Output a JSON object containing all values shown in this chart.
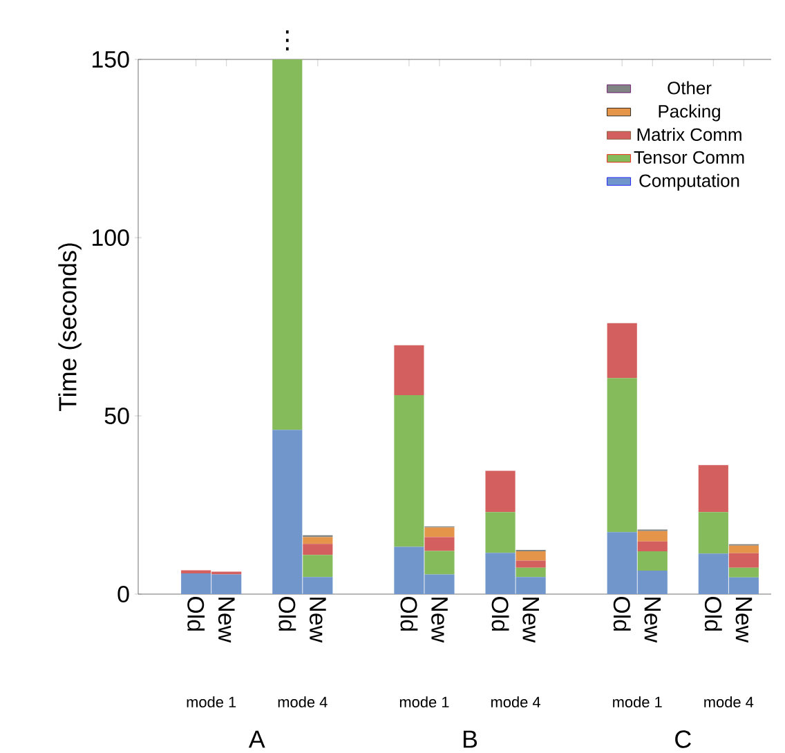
{
  "chart_data": {
    "type": "bar",
    "stacked": true,
    "ylabel": "Time (seconds)",
    "categories": [
      "Old",
      "New",
      null,
      "Old",
      "New",
      null,
      null,
      "Old",
      "New",
      null,
      "Old",
      "New",
      null,
      null,
      "Old",
      "New",
      null,
      "Old",
      "New"
    ],
    "series": [
      {
        "name": "Computation",
        "color": "#7096cc",
        "values": [
          5.8,
          5.5,
          null,
          46.1,
          4.8,
          null,
          null,
          13.3,
          5.5,
          null,
          11.6,
          4.8,
          null,
          null,
          17.4,
          6.6,
          null,
          11.4,
          4.7
        ]
      },
      {
        "name": "Tensor Comm",
        "color": "#86bb5c",
        "values": [
          0,
          0,
          null,
          103.9,
          6.2,
          null,
          null,
          42.5,
          6.6,
          null,
          11.4,
          2.6,
          null,
          null,
          43.2,
          5.4,
          null,
          11.6,
          2.7
        ]
      },
      {
        "name": "Matrix Comm",
        "color": "#d45f5f",
        "values": [
          0.9,
          0.8,
          null,
          0,
          3.1,
          null,
          null,
          14.0,
          3.9,
          null,
          11.6,
          2.0,
          null,
          null,
          15.4,
          2.8,
          null,
          13.2,
          4.1
        ]
      },
      {
        "name": "Packing",
        "color": "#e4954a",
        "values": [
          0,
          0,
          null,
          0,
          1.9,
          null,
          null,
          0,
          2.7,
          null,
          0,
          2.6,
          null,
          null,
          0,
          2.9,
          null,
          0,
          2.1
        ]
      },
      {
        "name": "Other",
        "color": "#808584",
        "values": [
          0,
          0,
          null,
          0,
          0.5,
          null,
          null,
          0,
          0.3,
          null,
          0,
          0.4,
          null,
          null,
          0,
          0.4,
          null,
          0,
          0.4
        ]
      }
    ],
    "ylim": [
      0,
      150
    ],
    "yticks": [
      0,
      50,
      100,
      150
    ],
    "grid": false,
    "legend": "top right",
    "annotations": [
      "mode 1",
      "mode 4",
      "mode 1",
      "mode 4",
      "mode 1",
      "mode 4",
      "A",
      "B",
      "C",
      "⋮"
    ]
  }
}
